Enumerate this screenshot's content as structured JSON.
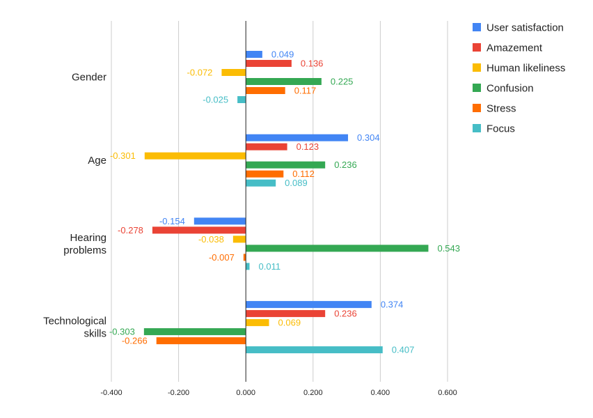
{
  "chart_data": {
    "type": "bar",
    "orientation": "horizontal",
    "title": "",
    "xlabel": "",
    "ylabel": "",
    "xlim": [
      -0.4,
      0.6
    ],
    "grid": true,
    "legend_position": "top-right",
    "x_ticks": [
      "-0.400",
      "-0.200",
      "0.000",
      "0.200",
      "0.400",
      "0.600"
    ],
    "x_tick_values": [
      -0.4,
      -0.2,
      0.0,
      0.2,
      0.4,
      0.6
    ],
    "categories": [
      [
        "Gender"
      ],
      [
        "Age"
      ],
      [
        "Hearing",
        "problems"
      ],
      [
        "Technological",
        "skills"
      ]
    ],
    "series": [
      {
        "name": "User satisfaction",
        "color": "#4285f4",
        "values": [
          0.049,
          0.304,
          -0.154,
          0.374
        ],
        "labels": [
          "0.049",
          "0.304",
          "-0.154",
          "0.374"
        ]
      },
      {
        "name": "Amazement",
        "color": "#ea4335",
        "values": [
          0.136,
          0.123,
          -0.278,
          0.236
        ],
        "labels": [
          "0.136",
          "0.123",
          "-0.278",
          "0.236"
        ]
      },
      {
        "name": "Human likeliness",
        "color": "#fbbc04",
        "values": [
          -0.072,
          -0.301,
          -0.038,
          0.069
        ],
        "labels": [
          "-0.072",
          "-0.301",
          "-0.038",
          "0.069"
        ]
      },
      {
        "name": "Confusion",
        "color": "#34a853",
        "values": [
          0.225,
          0.236,
          0.543,
          -0.303
        ],
        "labels": [
          "0.225",
          "0.236",
          "0.543",
          "-0.303"
        ]
      },
      {
        "name": "Stress",
        "color": "#ff6d01",
        "values": [
          0.117,
          0.112,
          -0.007,
          -0.266
        ],
        "labels": [
          "0.117",
          "0.112",
          "-0.007",
          "-0.266"
        ]
      },
      {
        "name": "Focus",
        "color": "#46bdc6",
        "values": [
          -0.025,
          0.089,
          0.011,
          0.407
        ],
        "labels": [
          "-0.025",
          "0.089",
          "0.011",
          "0.407"
        ]
      }
    ]
  }
}
